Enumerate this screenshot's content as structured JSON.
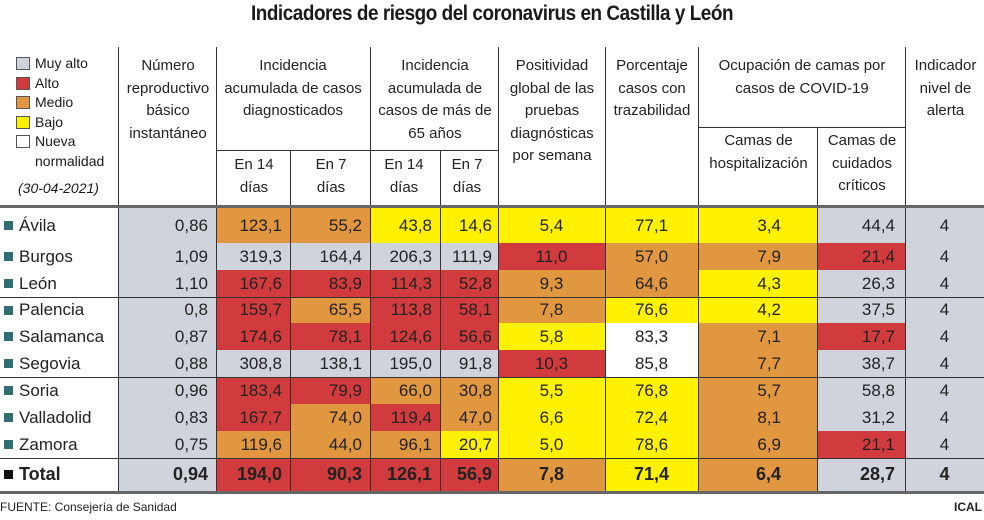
{
  "title": "Indicadores de riesgo del coronavirus en Castilla y León",
  "legend": {
    "items": [
      {
        "label": "Muy alto",
        "color": "#cfd4dc"
      },
      {
        "label": "Alto",
        "color": "#d13b3e"
      },
      {
        "label": "Medio",
        "color": "#e19640"
      },
      {
        "label": "Bajo",
        "color": "#fff200"
      },
      {
        "label": "Nueva",
        "color": "#ffffff"
      }
    ],
    "continuation": "normalidad",
    "date": "(30-04-2021)"
  },
  "headers": {
    "reproductivo": "Número reproductivo básico instantáneo",
    "ia_casos": "Incidencia acumulada de casos diagnosticados",
    "ia_65": "Incidencia acumulada de casos de más de 65 años",
    "positividad": "Positividad global de las pruebas diagnósticas por semana",
    "trazabilidad": "Porcentaje casos con trazabilidad",
    "ocupacion": "Ocupación de camas por casos de COVID-19",
    "hospitalizacion": "Camas de hospitalización",
    "criticos": "Camas de cuidados críticos",
    "alerta": "Indicador nivel de alerta",
    "en14": "En 14 días",
    "en7": "En 7 días"
  },
  "footer": {
    "source": "FUENTE: Consejería de Sanidad",
    "credit": "ICAL"
  },
  "chart_data": {
    "type": "table",
    "title": "Indicadores de riesgo del coronavirus en Castilla y León",
    "date": "30-04-2021",
    "level_colors": {
      "muy_alto": "#cfd4dc",
      "alto": "#d13b3e",
      "medio": "#e19640",
      "bajo": "#fff200",
      "nueva_normalidad": "#ffffff"
    },
    "columns": [
      "Número reproductivo básico instantáneo",
      "Incidencia acumulada de casos diagnosticados - En 14 días",
      "Incidencia acumulada de casos diagnosticados - En 7 días",
      "Incidencia acumulada de casos de más de 65 años - En 14 días",
      "Incidencia acumulada de casos de más de 65 años - En 7 días",
      "Positividad global de las pruebas diagnósticas por semana",
      "Porcentaje casos con trazabilidad",
      "Ocupación de camas - Camas de hospitalización",
      "Ocupación de camas - Camas de cuidados críticos",
      "Indicador nivel de alerta"
    ],
    "rows": [
      {
        "name": "Ávila",
        "values": [
          "0,86",
          "123,1",
          "55,2",
          "43,8",
          "14,6",
          "5,4",
          "77,1",
          "3,4",
          "44,4",
          "4"
        ],
        "levels": [
          "muy_alto",
          "medio",
          "medio",
          "bajo",
          "bajo",
          "bajo",
          "bajo",
          "bajo",
          "muy_alto",
          "muy_alto"
        ]
      },
      {
        "name": "Burgos",
        "values": [
          "1,09",
          "319,3",
          "164,4",
          "206,3",
          "111,9",
          "11,0",
          "57,0",
          "7,9",
          "21,4",
          "4"
        ],
        "levels": [
          "muy_alto",
          "muy_alto",
          "muy_alto",
          "muy_alto",
          "muy_alto",
          "alto",
          "medio",
          "medio",
          "alto",
          "muy_alto"
        ]
      },
      {
        "name": "León",
        "values": [
          "1,10",
          "167,6",
          "83,9",
          "114,3",
          "52,8",
          "9,3",
          "64,6",
          "4,3",
          "26,3",
          "4"
        ],
        "levels": [
          "muy_alto",
          "alto",
          "alto",
          "alto",
          "alto",
          "medio",
          "medio",
          "bajo",
          "muy_alto",
          "muy_alto"
        ]
      },
      {
        "name": "Palencia",
        "values": [
          "0,8",
          "159,7",
          "65,5",
          "113,8",
          "58,1",
          "7,8",
          "76,6",
          "4,2",
          "37,5",
          "4"
        ],
        "levels": [
          "muy_alto",
          "alto",
          "medio",
          "alto",
          "alto",
          "medio",
          "bajo",
          "bajo",
          "muy_alto",
          "muy_alto"
        ]
      },
      {
        "name": "Salamanca",
        "values": [
          "0,87",
          "174,6",
          "78,1",
          "124,6",
          "56,6",
          "5,8",
          "83,3",
          "7,1",
          "17,7",
          "4"
        ],
        "levels": [
          "muy_alto",
          "alto",
          "alto",
          "alto",
          "alto",
          "bajo",
          "nueva_normalidad",
          "medio",
          "alto",
          "muy_alto"
        ]
      },
      {
        "name": "Segovia",
        "values": [
          "0,88",
          "308,8",
          "138,1",
          "195,0",
          "91,8",
          "10,3",
          "85,8",
          "7,7",
          "38,7",
          "4"
        ],
        "levels": [
          "muy_alto",
          "muy_alto",
          "muy_alto",
          "muy_alto",
          "muy_alto",
          "alto",
          "nueva_normalidad",
          "medio",
          "muy_alto",
          "muy_alto"
        ]
      },
      {
        "name": "Soria",
        "values": [
          "0,96",
          "183,4",
          "79,9",
          "66,0",
          "30,8",
          "5,5",
          "76,8",
          "5,7",
          "58,8",
          "4"
        ],
        "levels": [
          "muy_alto",
          "alto",
          "alto",
          "medio",
          "medio",
          "bajo",
          "bajo",
          "medio",
          "muy_alto",
          "muy_alto"
        ]
      },
      {
        "name": "Valladolid",
        "values": [
          "0,83",
          "167,7",
          "74,0",
          "119,4",
          "47,0",
          "6,6",
          "72,4",
          "8,1",
          "31,2",
          "4"
        ],
        "levels": [
          "muy_alto",
          "alto",
          "medio",
          "alto",
          "medio",
          "bajo",
          "bajo",
          "medio",
          "muy_alto",
          "muy_alto"
        ]
      },
      {
        "name": "Zamora",
        "values": [
          "0,75",
          "119,6",
          "44,0",
          "96,1",
          "20,7",
          "5,0",
          "78,6",
          "6,9",
          "21,1",
          "4"
        ],
        "levels": [
          "muy_alto",
          "medio",
          "medio",
          "medio",
          "bajo",
          "bajo",
          "bajo",
          "medio",
          "alto",
          "muy_alto"
        ]
      },
      {
        "name": "Total",
        "values": [
          "0,94",
          "194,0",
          "90,3",
          "126,1",
          "56,9",
          "7,8",
          "71,4",
          "6,4",
          "28,7",
          "4"
        ],
        "levels": [
          "muy_alto",
          "alto",
          "alto",
          "alto",
          "alto",
          "medio",
          "bajo",
          "medio",
          "muy_alto",
          "muy_alto"
        ]
      }
    ]
  }
}
